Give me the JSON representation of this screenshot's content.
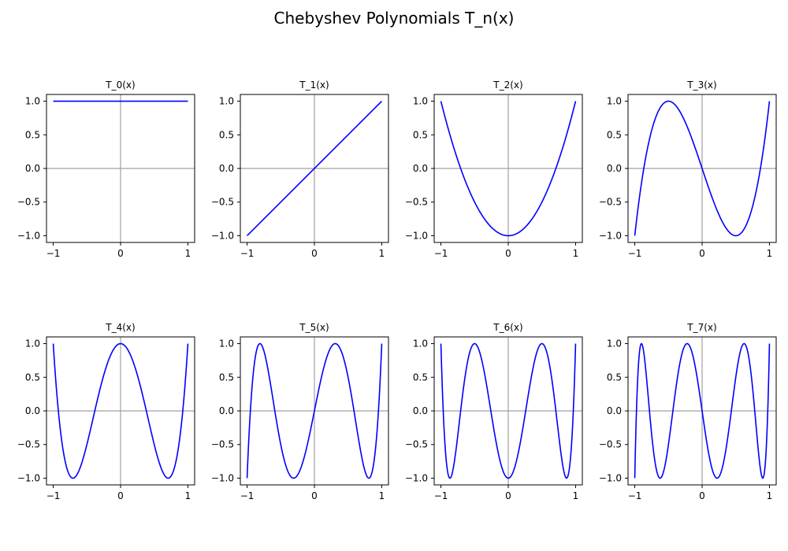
{
  "figure": {
    "title": "Chebyshev Polynomials T_n(x)"
  },
  "chart_data": {
    "type": "line",
    "layout": "2x4 grid",
    "function": "Chebyshev polynomial of the first kind",
    "xlim": [
      -1.1,
      1.1
    ],
    "ylim": [
      -1.1,
      1.1
    ],
    "xticks": [
      -1,
      0,
      1
    ],
    "yticks": [
      -1.0,
      -0.5,
      0.0,
      0.5,
      1.0
    ],
    "xtick_labels": [
      "−1",
      "0",
      "1"
    ],
    "ytick_labels": [
      "−1.0",
      "−0.5",
      "0.0",
      "0.5",
      "1.0"
    ],
    "reference_lines": {
      "x": 0,
      "y": 0,
      "color": "#a0a0a0"
    },
    "line_color": "#0000ff",
    "grid": false,
    "panels": [
      {
        "title": "T_0(x)",
        "n": 0
      },
      {
        "title": "T_1(x)",
        "n": 1
      },
      {
        "title": "T_2(x)",
        "n": 2
      },
      {
        "title": "T_3(x)",
        "n": 3
      },
      {
        "title": "T_4(x)",
        "n": 4
      },
      {
        "title": "T_5(x)",
        "n": 5
      },
      {
        "title": "T_6(x)",
        "n": 6
      },
      {
        "title": "T_7(x)",
        "n": 7
      }
    ]
  }
}
